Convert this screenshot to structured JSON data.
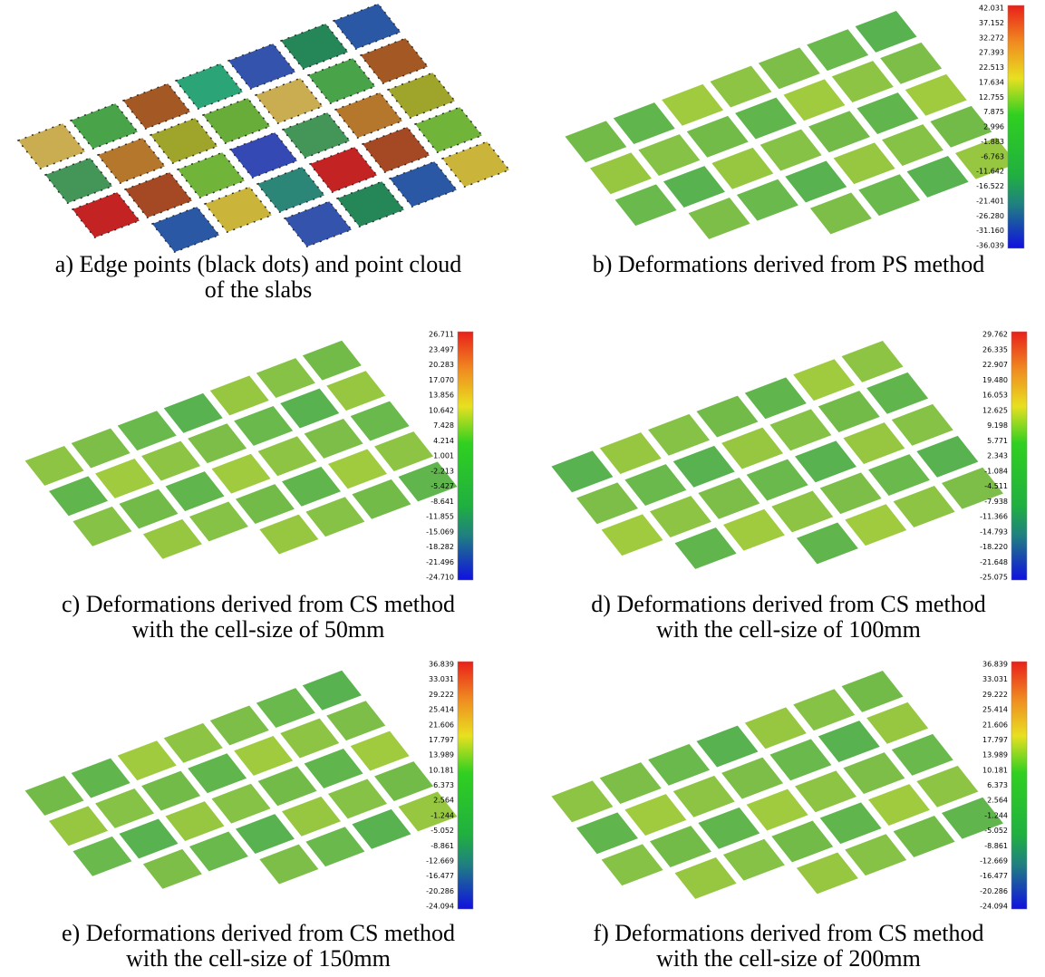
{
  "panels": [
    {
      "caption": [
        "a) Edge points (black dots) and point cloud",
        "of the slabs"
      ]
    },
    {
      "caption": [
        "b) Deformations derived from PS method"
      ],
      "colorbar": [
        "42.031",
        "37.152",
        "32.272",
        "27.393",
        "22.513",
        "17.634",
        "12.755",
        "7.875",
        "2.996",
        "-1.883",
        "-6.763",
        "-11.642",
        "-16.522",
        "-21.401",
        "-26.280",
        "-31.160",
        "-36.039"
      ]
    },
    {
      "caption": [
        "c) Deformations derived from CS method",
        "with the cell-size of 50mm"
      ],
      "colorbar": [
        "26.711",
        "23.497",
        "20.283",
        "17.070",
        "13.856",
        "10.642",
        "7.428",
        "4.214",
        "1.001",
        "-2.213",
        "-5.427",
        "-8.641",
        "-11.855",
        "-15.069",
        "-18.282",
        "-21.496",
        "-24.710"
      ]
    },
    {
      "caption": [
        "d) Deformations derived from CS method",
        "with the cell-size of 100mm"
      ],
      "colorbar": [
        "29.762",
        "26.335",
        "22.907",
        "19.480",
        "16.053",
        "12.625",
        "9.198",
        "5.771",
        "2.343",
        "-1.084",
        "-4.511",
        "-7.938",
        "-11.366",
        "-14.793",
        "-18.220",
        "-21.648",
        "-25.075"
      ]
    },
    {
      "caption": [
        "e) Deformations derived from CS method",
        "with the cell-size of 150mm"
      ],
      "colorbar": [
        "36.839",
        "33.031",
        "29.222",
        "25.414",
        "21.606",
        "17.797",
        "13.989",
        "10.181",
        "6.373",
        "2.564",
        "-1.244",
        "-5.052",
        "-8.861",
        "-12.669",
        "-16.477",
        "-20.286",
        "-24.094"
      ]
    },
    {
      "caption": [
        "f) Deformations derived from CS method",
        "with the cell-size of 200mm"
      ],
      "colorbar": [
        "36.839",
        "33.031",
        "29.222",
        "25.414",
        "21.606",
        "17.797",
        "13.989",
        "10.181",
        "6.373",
        "2.564",
        "-1.244",
        "-5.052",
        "-8.861",
        "-12.669",
        "-16.477",
        "-20.286",
        "-24.094"
      ]
    }
  ]
}
